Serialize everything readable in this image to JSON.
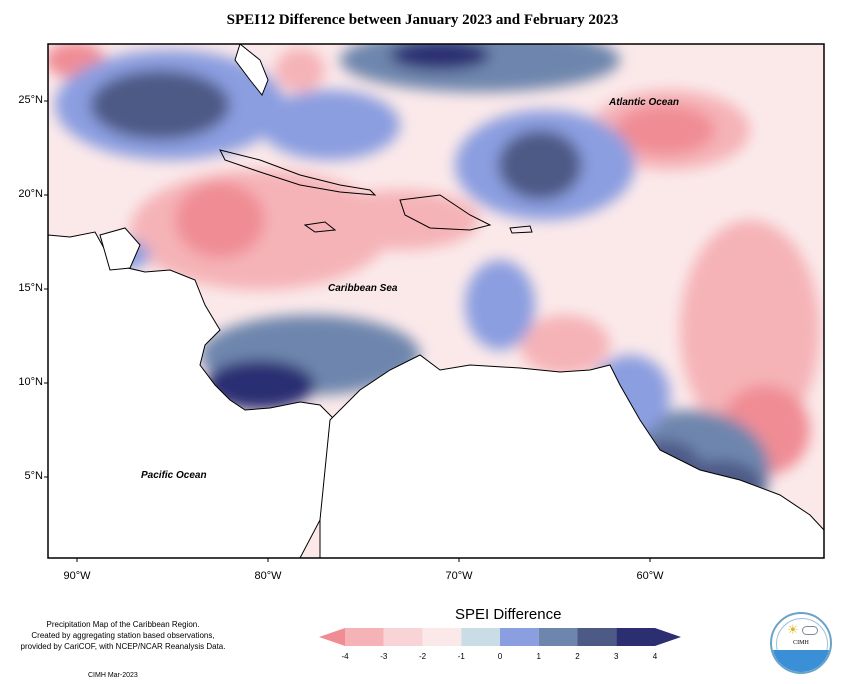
{
  "title": "SPEI12 Difference between January 2023 and February 2023",
  "labels": {
    "atlantic": "Atlantic Ocean",
    "caribbean": "Caribbean Sea",
    "pacific": "Pacific Ocean"
  },
  "lat_ticks": [
    "25°N",
    "20°N",
    "15°N",
    "10°N",
    "5°N"
  ],
  "lon_ticks": [
    "90°W",
    "80°W",
    "70°W",
    "60°W"
  ],
  "legend": {
    "title": "SPEI Difference",
    "ticks": [
      "-4",
      "-3",
      "-2",
      "-1",
      "0",
      "1",
      "2",
      "3",
      "4"
    ],
    "colors": [
      "#f08c94",
      "#f5b3b7",
      "#f8d4d6",
      "#fbe9ea",
      "#c9dde6",
      "#8b9ee0",
      "#6e86ad",
      "#4d5a86",
      "#2b2f72"
    ]
  },
  "source_note": {
    "line1": "Precipitation Map of the Caribbean Region.",
    "line2": "Created by aggregating station based observations,",
    "line3": "provided by CariCOF, with NCEP/NCAR Reanalysis Data."
  },
  "credit": "CIMH Mar-2023",
  "logo_text": "CIMH"
}
